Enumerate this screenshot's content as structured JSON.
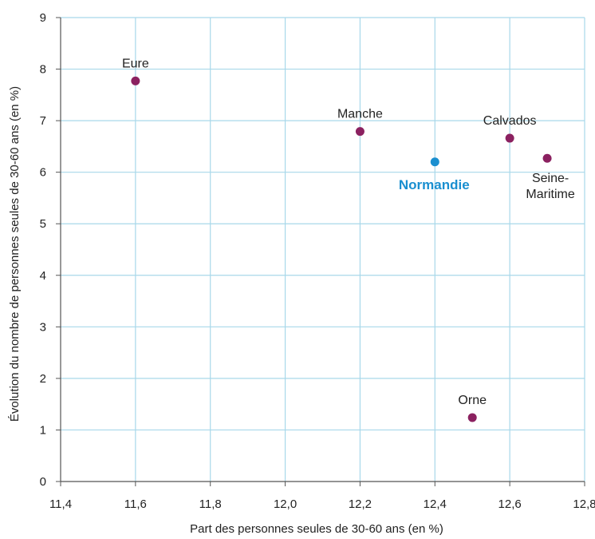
{
  "chart_data": {
    "type": "scatter",
    "xlabel": "Part des personnes seules de 30-60 ans (en %)",
    "ylabel": "Évolution du nombre de personnes seules de 30-60 ans (en %)",
    "xlim": [
      11.4,
      12.8
    ],
    "ylim": [
      0,
      9
    ],
    "x_ticks": [
      "11,4",
      "11,6",
      "11,8",
      "12,0",
      "12,2",
      "12,4",
      "12,6",
      "12,8"
    ],
    "y_ticks": [
      "0",
      "1",
      "2",
      "3",
      "4",
      "5",
      "6",
      "7",
      "8",
      "9"
    ],
    "grid": true,
    "colors": {
      "point": "#8b2160",
      "highlight": "#1a8fd0",
      "grid": "#a8d8ea",
      "axis": "#555555"
    },
    "points": [
      {
        "label": [
          "Eure"
        ],
        "x": 11.6,
        "y": 7.77,
        "highlight": false,
        "label_pos": "above"
      },
      {
        "label": [
          "Manche"
        ],
        "x": 12.2,
        "y": 6.79,
        "highlight": false,
        "label_pos": "above"
      },
      {
        "label": [
          "Normandie"
        ],
        "x": 12.4,
        "y": 6.2,
        "highlight": true,
        "label_pos": "below"
      },
      {
        "label": [
          "Calvados"
        ],
        "x": 12.6,
        "y": 6.66,
        "highlight": false,
        "label_pos": "above"
      },
      {
        "label": [
          "Seine-",
          "Maritime"
        ],
        "x": 12.7,
        "y": 6.27,
        "highlight": false,
        "label_pos": "below"
      },
      {
        "label": [
          "Orne"
        ],
        "x": 12.5,
        "y": 1.24,
        "highlight": false,
        "label_pos": "above"
      }
    ]
  }
}
